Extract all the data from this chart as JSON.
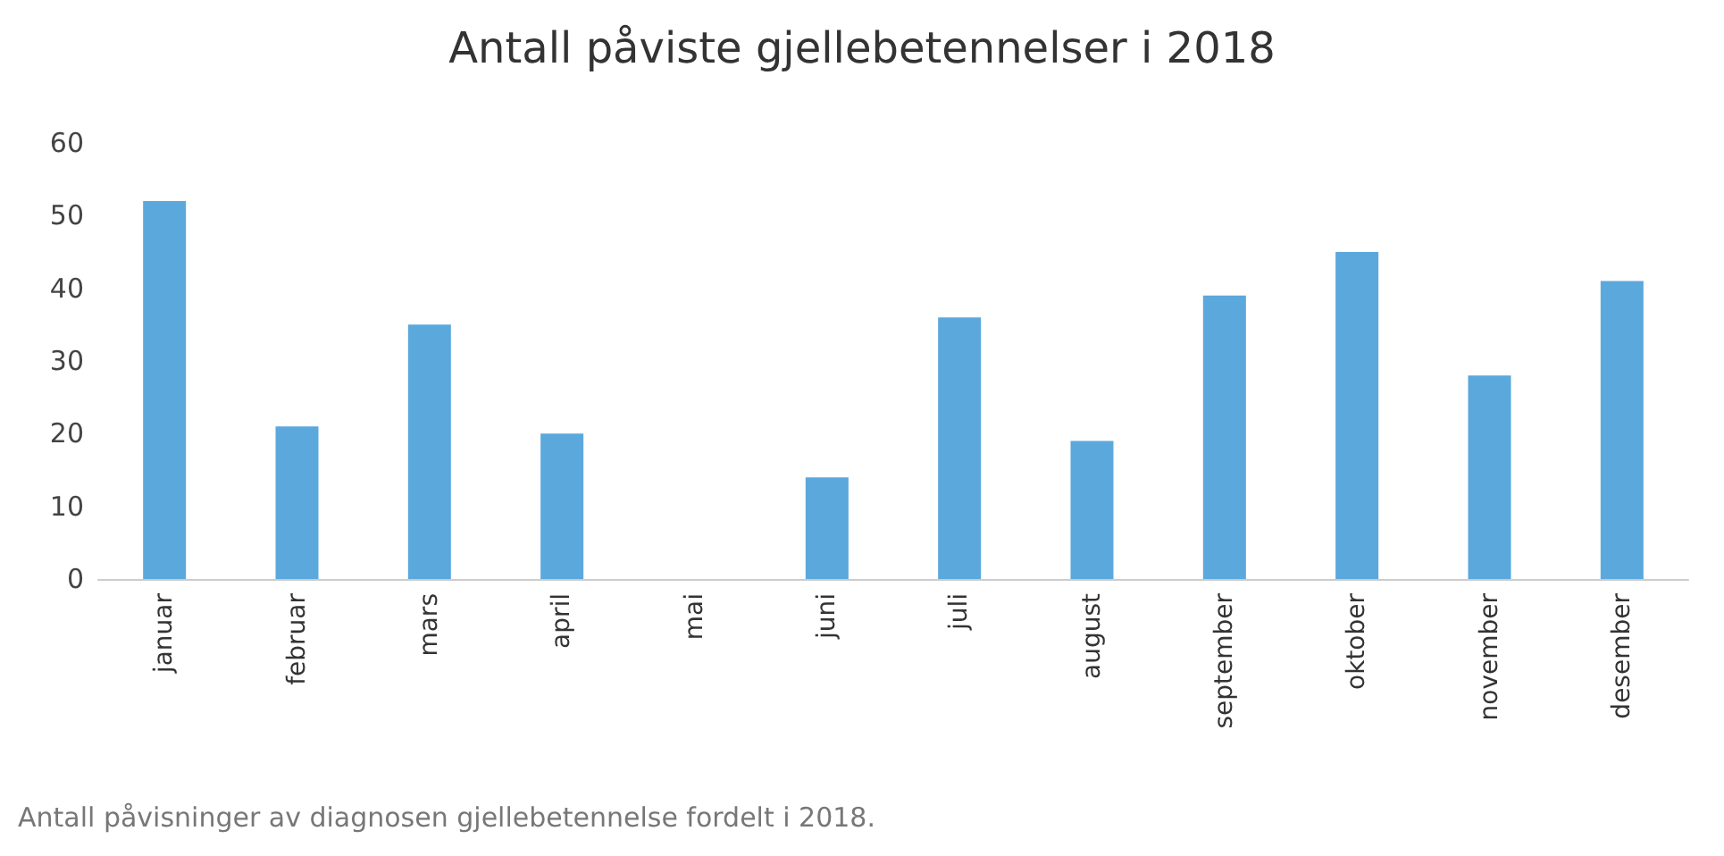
{
  "chart_data": {
    "type": "bar",
    "title": "Antall påviste gjellebetennelser i 2018",
    "categories": [
      "januar",
      "februar",
      "mars",
      "april",
      "mai",
      "juni",
      "juli",
      "august",
      "september",
      "oktober",
      "november",
      "desember"
    ],
    "values": [
      52,
      21,
      35,
      20,
      0,
      14,
      36,
      19,
      39,
      45,
      28,
      41
    ],
    "color": "#5ba8dc",
    "ylim": [
      0,
      60
    ],
    "yticks": [
      0,
      10,
      20,
      30,
      40,
      50,
      60
    ],
    "grid": false,
    "annotations": [
      "Antall påvisninger av diagnosen gjellebetennelse fordelt i 2018."
    ]
  }
}
